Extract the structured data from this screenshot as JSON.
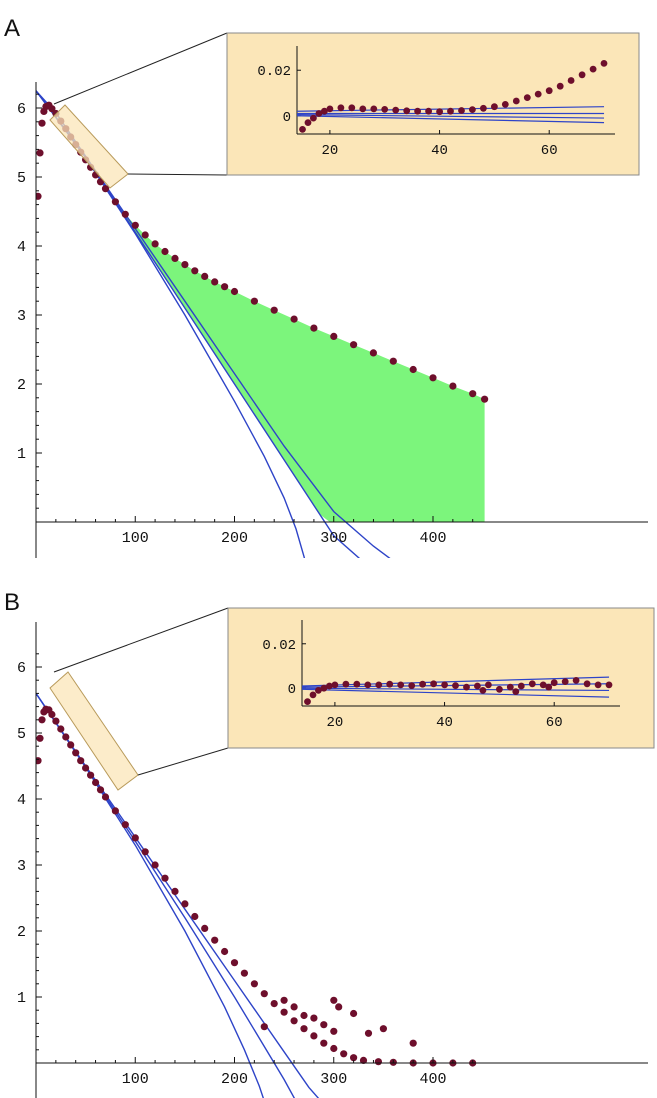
{
  "colors": {
    "data_points": "#6e0f2c",
    "fit_lines": "#2e44c8",
    "fill_area": "#7cf57c",
    "inset_background": "#fbe6b8",
    "inset_border": "#8a8a8a",
    "axis": "#111111"
  },
  "chart_data": [
    {
      "type": "scatter",
      "panel_label": "A",
      "title": "",
      "xlabel": "",
      "ylabel": "",
      "xlim": [
        0,
        460
      ],
      "ylim": [
        -0.5,
        6.4
      ],
      "x_ticks": [
        100,
        200,
        300,
        400
      ],
      "y_ticks": [
        1,
        2,
        3,
        4,
        5,
        6
      ],
      "fill_between_data_and_fit": true,
      "highlight_x_range": [
        15,
        70
      ],
      "series": [
        {
          "kind": "points",
          "points": [
            [
              2,
              4.72
            ],
            [
              4,
              5.35
            ],
            [
              6,
              5.78
            ],
            [
              8,
              5.95
            ],
            [
              10,
              6.02
            ],
            [
              13,
              6.04
            ],
            [
              16,
              5.99
            ],
            [
              20,
              5.92
            ],
            [
              25,
              5.81
            ],
            [
              30,
              5.7
            ],
            [
              35,
              5.58
            ],
            [
              40,
              5.47
            ],
            [
              45,
              5.36
            ],
            [
              50,
              5.25
            ],
            [
              55,
              5.14
            ],
            [
              60,
              5.03
            ],
            [
              65,
              4.93
            ],
            [
              70,
              4.83
            ],
            [
              80,
              4.64
            ],
            [
              90,
              4.46
            ],
            [
              100,
              4.3
            ],
            [
              110,
              4.16
            ],
            [
              120,
              4.03
            ],
            [
              130,
              3.92
            ],
            [
              140,
              3.82
            ],
            [
              150,
              3.73
            ],
            [
              160,
              3.64
            ],
            [
              170,
              3.56
            ],
            [
              180,
              3.48
            ],
            [
              190,
              3.41
            ],
            [
              200,
              3.34
            ],
            [
              220,
              3.2
            ],
            [
              240,
              3.07
            ],
            [
              260,
              2.94
            ],
            [
              280,
              2.81
            ],
            [
              300,
              2.69
            ],
            [
              320,
              2.57
            ],
            [
              340,
              2.45
            ],
            [
              360,
              2.33
            ],
            [
              380,
              2.21
            ],
            [
              400,
              2.09
            ],
            [
              420,
              1.97
            ],
            [
              440,
              1.86
            ],
            [
              452,
              1.78
            ]
          ]
        },
        {
          "kind": "line",
          "name_hint": "linear fit",
          "points": [
            [
              0,
              6.25
            ],
            [
              20,
              5.93
            ],
            [
              50,
              5.3
            ],
            [
              100,
              4.2
            ],
            [
              150,
              3.1
            ],
            [
              200,
              2.0
            ],
            [
              250,
              0.9
            ],
            [
              300,
              -0.2
            ],
            [
              330,
              -0.58
            ]
          ]
        },
        {
          "kind": "line",
          "name_hint": "curved fit",
          "points": [
            [
              0,
              6.25
            ],
            [
              50,
              5.3
            ],
            [
              100,
              4.25
            ],
            [
              150,
              3.2
            ],
            [
              200,
              2.15
            ],
            [
              250,
              1.1
            ],
            [
              300,
              0.15
            ],
            [
              340,
              -0.35
            ],
            [
              380,
              -0.78
            ]
          ]
        },
        {
          "kind": "line",
          "name_hint": "strongly curved fit",
          "points": [
            [
              0,
              6.25
            ],
            [
              50,
              5.28
            ],
            [
              100,
              4.18
            ],
            [
              150,
              3.0
            ],
            [
              200,
              1.75
            ],
            [
              230,
              0.95
            ],
            [
              250,
              0.35
            ],
            [
              262,
              -0.1
            ],
            [
              270,
              -0.5
            ],
            [
              275,
              -0.8
            ]
          ]
        }
      ],
      "inset": {
        "xlim": [
          14,
          72
        ],
        "ylim": [
          -0.008,
          0.028
        ],
        "x_ticks": [
          20,
          40,
          60
        ],
        "y_tick_labels": [
          {
            "value": 0.02,
            "label": "0.02"
          },
          {
            "value": 0,
            "label": "0"
          }
        ],
        "residual_points": [
          [
            15,
            -0.006
          ],
          [
            16,
            -0.003
          ],
          [
            17,
            -0.001
          ],
          [
            18,
            0.001
          ],
          [
            19,
            0.002
          ],
          [
            20,
            0.003
          ],
          [
            22,
            0.0035
          ],
          [
            24,
            0.0035
          ],
          [
            26,
            0.003
          ],
          [
            28,
            0.003
          ],
          [
            30,
            0.0028
          ],
          [
            32,
            0.0025
          ],
          [
            34,
            0.0022
          ],
          [
            36,
            0.002
          ],
          [
            38,
            0.002
          ],
          [
            40,
            0.0018
          ],
          [
            42,
            0.002
          ],
          [
            44,
            0.0023
          ],
          [
            46,
            0.0027
          ],
          [
            48,
            0.0033
          ],
          [
            50,
            0.004
          ],
          [
            52,
            0.005
          ],
          [
            54,
            0.0065
          ],
          [
            56,
            0.008
          ],
          [
            58,
            0.0095
          ],
          [
            60,
            0.011
          ],
          [
            62,
            0.013
          ],
          [
            64,
            0.0155
          ],
          [
            66,
            0.018
          ],
          [
            68,
            0.0205
          ],
          [
            70,
            0.023
          ]
        ],
        "residual_lines": [
          [
            [
              14,
              0.002
            ],
            [
              70,
              0.004
            ]
          ],
          [
            [
              14,
              0.001
            ],
            [
              70,
              0.001
            ]
          ],
          [
            [
              14,
              0.0005
            ],
            [
              70,
              -0.001
            ]
          ],
          [
            [
              14,
              0.0
            ],
            [
              70,
              -0.003
            ]
          ]
        ]
      }
    },
    {
      "type": "scatter",
      "panel_label": "B",
      "title": "",
      "xlabel": "",
      "ylabel": "",
      "xlim": [
        0,
        460
      ],
      "ylim": [
        -0.5,
        6.4
      ],
      "x_ticks": [
        100,
        200,
        300,
        400
      ],
      "y_ticks": [
        1,
        2,
        3,
        4,
        5,
        6
      ],
      "fill_between_data_and_fit": false,
      "highlight_x_range": [
        15,
        70
      ],
      "series": [
        {
          "kind": "points",
          "points": [
            [
              2,
              4.58
            ],
            [
              4,
              4.92
            ],
            [
              6,
              5.2
            ],
            [
              8,
              5.32
            ],
            [
              10,
              5.36
            ],
            [
              13,
              5.35
            ],
            [
              16,
              5.28
            ],
            [
              20,
              5.18
            ],
            [
              25,
              5.06
            ],
            [
              30,
              4.94
            ],
            [
              35,
              4.82
            ],
            [
              40,
              4.7
            ],
            [
              45,
              4.58
            ],
            [
              50,
              4.47
            ],
            [
              55,
              4.36
            ],
            [
              60,
              4.25
            ],
            [
              65,
              4.14
            ],
            [
              70,
              4.03
            ],
            [
              80,
              3.82
            ],
            [
              90,
              3.61
            ],
            [
              100,
              3.41
            ],
            [
              110,
              3.2
            ],
            [
              120,
              3.0
            ],
            [
              130,
              2.8
            ],
            [
              140,
              2.6
            ],
            [
              150,
              2.41
            ],
            [
              160,
              2.22
            ],
            [
              170,
              2.04
            ],
            [
              180,
              1.86
            ],
            [
              190,
              1.69
            ],
            [
              200,
              1.52
            ],
            [
              210,
              1.36
            ],
            [
              220,
              1.2
            ],
            [
              230,
              1.05
            ],
            [
              240,
              0.9
            ],
            [
              250,
              0.77
            ],
            [
              260,
              0.64
            ],
            [
              270,
              0.52
            ],
            [
              280,
              0.41
            ],
            [
              290,
              0.3
            ],
            [
              300,
              0.22
            ],
            [
              310,
              0.14
            ],
            [
              320,
              0.08
            ],
            [
              330,
              0.04
            ],
            [
              345,
              0.02
            ],
            [
              360,
              0.01
            ],
            [
              380,
              0.0
            ],
            [
              400,
              0.0
            ],
            [
              420,
              0.0
            ],
            [
              440,
              0.0
            ],
            [
              230,
              0.55
            ],
            [
              250,
              0.95
            ],
            [
              260,
              0.85
            ],
            [
              270,
              0.72
            ],
            [
              280,
              0.68
            ],
            [
              290,
              0.58
            ],
            [
              300,
              0.48
            ],
            [
              305,
              0.85
            ],
            [
              320,
              0.75
            ],
            [
              335,
              0.45
            ],
            [
              350,
              0.52
            ],
            [
              380,
              0.3
            ],
            [
              300,
              0.95
            ]
          ]
        },
        {
          "kind": "line",
          "name_hint": "linear fit",
          "points": [
            [
              0,
              5.6
            ],
            [
              50,
              4.5
            ],
            [
              100,
              3.42
            ],
            [
              150,
              2.33
            ],
            [
              200,
              1.25
            ],
            [
              250,
              0.17
            ],
            [
              275,
              -0.37
            ],
            [
              300,
              -0.8
            ]
          ]
        },
        {
          "kind": "line",
          "name_hint": "curved fit",
          "points": [
            [
              0,
              5.6
            ],
            [
              50,
              4.49
            ],
            [
              100,
              3.36
            ],
            [
              150,
              2.2
            ],
            [
              200,
              1.0
            ],
            [
              230,
              0.25
            ],
            [
              250,
              -0.25
            ],
            [
              270,
              -0.8
            ]
          ]
        },
        {
          "kind": "line",
          "name_hint": "strongly curved fit",
          "points": [
            [
              0,
              5.6
            ],
            [
              50,
              4.48
            ],
            [
              100,
              3.3
            ],
            [
              150,
              2.0
            ],
            [
              190,
              0.85
            ],
            [
              210,
              0.2
            ],
            [
              225,
              -0.35
            ],
            [
              235,
              -0.8
            ]
          ]
        }
      ],
      "inset": {
        "xlim": [
          14,
          72
        ],
        "ylim": [
          -0.008,
          0.028
        ],
        "x_ticks": [
          20,
          40,
          60
        ],
        "y_tick_labels": [
          {
            "value": 0.02,
            "label": "0.02"
          },
          {
            "value": 0,
            "label": "0"
          }
        ],
        "residual_points": [
          [
            15,
            -0.006
          ],
          [
            16,
            -0.003
          ],
          [
            17,
            -0.001
          ],
          [
            18,
            0.0
          ],
          [
            19,
            0.001
          ],
          [
            20,
            0.0015
          ],
          [
            22,
            0.0018
          ],
          [
            24,
            0.0018
          ],
          [
            26,
            0.0015
          ],
          [
            28,
            0.0015
          ],
          [
            30,
            0.0018
          ],
          [
            32,
            0.0015
          ],
          [
            34,
            0.0012
          ],
          [
            36,
            0.0018
          ],
          [
            38,
            0.002
          ],
          [
            40,
            0.0015
          ],
          [
            42,
            0.0012
          ],
          [
            44,
            0.0005
          ],
          [
            46,
            0.001
          ],
          [
            48,
            0.0015
          ],
          [
            50,
            -0.0005
          ],
          [
            52,
            0.0005
          ],
          [
            54,
            0.001
          ],
          [
            56,
            0.002
          ],
          [
            58,
            0.0015
          ],
          [
            60,
            0.0025
          ],
          [
            62,
            0.003
          ],
          [
            64,
            0.0035
          ],
          [
            66,
            0.002
          ],
          [
            68,
            0.0015
          ],
          [
            70,
            0.0015
          ],
          [
            47,
            -0.001
          ],
          [
            53,
            -0.0015
          ],
          [
            59,
            0.0005
          ]
        ],
        "residual_lines": [
          [
            [
              14,
              0.001
            ],
            [
              70,
              0.005
            ]
          ],
          [
            [
              14,
              0.0005
            ],
            [
              70,
              0.002
            ]
          ],
          [
            [
              14,
              0.0
            ],
            [
              70,
              -0.001
            ]
          ],
          [
            [
              14,
              -0.0005
            ],
            [
              70,
              -0.004
            ]
          ]
        ]
      }
    }
  ]
}
